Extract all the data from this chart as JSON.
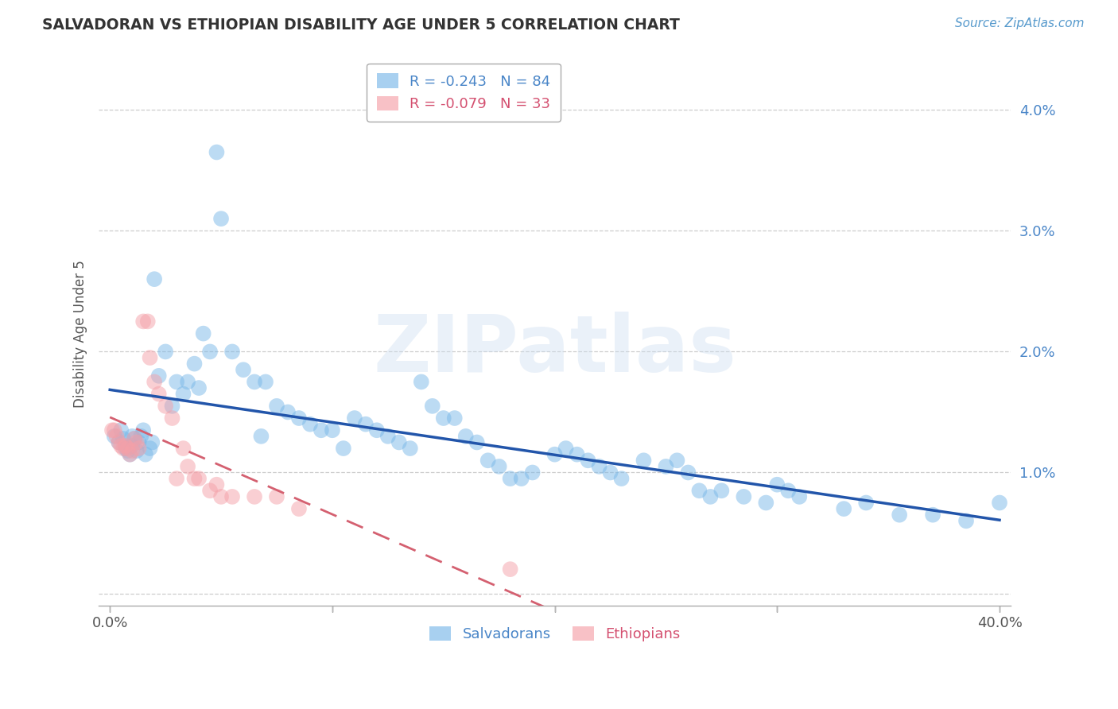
{
  "title": "SALVADORAN VS ETHIOPIAN DISABILITY AGE UNDER 5 CORRELATION CHART",
  "source": "Source: ZipAtlas.com",
  "ylabel": "Disability Age Under 5",
  "xlim": [
    -0.005,
    0.405
  ],
  "ylim": [
    -0.001,
    0.044
  ],
  "xticks": [
    0.0,
    0.1,
    0.2,
    0.3,
    0.4
  ],
  "yticks": [
    0.0,
    0.01,
    0.02,
    0.03,
    0.04
  ],
  "salvadoran_color": "#7ab8e8",
  "ethiopian_color": "#f5a0a8",
  "salvadoran_R": -0.243,
  "salvadoran_N": 84,
  "ethiopian_R": -0.079,
  "ethiopian_N": 33,
  "background_color": "#ffffff",
  "grid_color": "#c8c8c8",
  "watermark_text": "ZIPatlas",
  "sal_line_color": "#2255aa",
  "eth_line_color": "#d46070",
  "salvadoran_x": [
    0.002,
    0.004,
    0.005,
    0.006,
    0.007,
    0.008,
    0.009,
    0.01,
    0.01,
    0.011,
    0.012,
    0.013,
    0.014,
    0.015,
    0.016,
    0.018,
    0.019,
    0.02,
    0.022,
    0.025,
    0.028,
    0.03,
    0.033,
    0.035,
    0.038,
    0.04,
    0.042,
    0.045,
    0.048,
    0.05,
    0.055,
    0.06,
    0.065,
    0.068,
    0.07,
    0.075,
    0.08,
    0.085,
    0.09,
    0.095,
    0.1,
    0.105,
    0.11,
    0.115,
    0.12,
    0.125,
    0.13,
    0.135,
    0.14,
    0.145,
    0.15,
    0.155,
    0.16,
    0.165,
    0.17,
    0.175,
    0.18,
    0.185,
    0.19,
    0.2,
    0.205,
    0.21,
    0.215,
    0.22,
    0.225,
    0.23,
    0.24,
    0.25,
    0.255,
    0.26,
    0.265,
    0.27,
    0.275,
    0.285,
    0.295,
    0.3,
    0.305,
    0.31,
    0.33,
    0.34,
    0.355,
    0.37,
    0.385,
    0.4
  ],
  "salvadoran_y": [
    0.013,
    0.0125,
    0.0135,
    0.0128,
    0.012,
    0.0118,
    0.0115,
    0.0122,
    0.013,
    0.0128,
    0.0118,
    0.0125,
    0.013,
    0.0135,
    0.0115,
    0.012,
    0.0125,
    0.026,
    0.018,
    0.02,
    0.0155,
    0.0175,
    0.0165,
    0.0175,
    0.019,
    0.017,
    0.0215,
    0.02,
    0.0365,
    0.031,
    0.02,
    0.0185,
    0.0175,
    0.013,
    0.0175,
    0.0155,
    0.015,
    0.0145,
    0.014,
    0.0135,
    0.0135,
    0.012,
    0.0145,
    0.014,
    0.0135,
    0.013,
    0.0125,
    0.012,
    0.0175,
    0.0155,
    0.0145,
    0.0145,
    0.013,
    0.0125,
    0.011,
    0.0105,
    0.0095,
    0.0095,
    0.01,
    0.0115,
    0.012,
    0.0115,
    0.011,
    0.0105,
    0.01,
    0.0095,
    0.011,
    0.0105,
    0.011,
    0.01,
    0.0085,
    0.008,
    0.0085,
    0.008,
    0.0075,
    0.009,
    0.0085,
    0.008,
    0.007,
    0.0075,
    0.0065,
    0.0065,
    0.006,
    0.0075
  ],
  "ethiopian_x": [
    0.001,
    0.002,
    0.003,
    0.004,
    0.005,
    0.006,
    0.007,
    0.008,
    0.009,
    0.01,
    0.011,
    0.012,
    0.013,
    0.015,
    0.017,
    0.018,
    0.02,
    0.022,
    0.025,
    0.028,
    0.03,
    0.033,
    0.035,
    0.038,
    0.04,
    0.045,
    0.048,
    0.05,
    0.055,
    0.065,
    0.075,
    0.085,
    0.18
  ],
  "ethiopian_y": [
    0.0135,
    0.0135,
    0.013,
    0.0125,
    0.0122,
    0.012,
    0.0122,
    0.012,
    0.0115,
    0.0118,
    0.0128,
    0.0125,
    0.012,
    0.0225,
    0.0225,
    0.0195,
    0.0175,
    0.0165,
    0.0155,
    0.0145,
    0.0095,
    0.012,
    0.0105,
    0.0095,
    0.0095,
    0.0085,
    0.009,
    0.008,
    0.008,
    0.008,
    0.008,
    0.007,
    0.002
  ]
}
